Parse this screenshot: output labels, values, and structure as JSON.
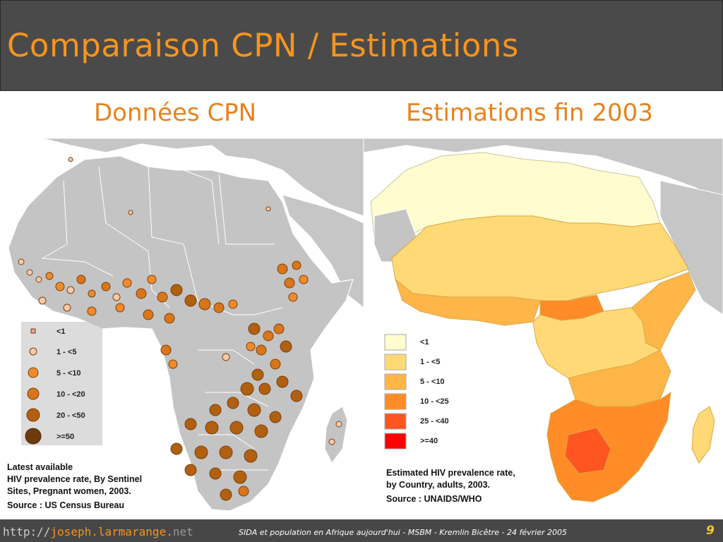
{
  "slide": {
    "title": "Comparaison CPN / Estimations",
    "page_number": "9"
  },
  "left_panel": {
    "heading": "Données CPN",
    "legend": [
      {
        "label": "<1",
        "color": "#e8a0a0"
      },
      {
        "label": "1 - <5",
        "color": "#f9c9a8"
      },
      {
        "label": "5 - <10",
        "color": "#f08a2a"
      },
      {
        "label": "10 - <20",
        "color": "#d9761a"
      },
      {
        "label": "20 - <50",
        "color": "#b0600f"
      },
      {
        "label": ">=50",
        "color": "#6e3a0c"
      }
    ],
    "caption_line1": "Latest available",
    "caption_line2": "HIV prevalence rate, By Sentinel",
    "caption_line3": "Sites, Pregnant women, 2003.",
    "source": "Source : US Census Bureau"
  },
  "right_panel": {
    "heading": "Estimations fin 2003",
    "legend": [
      {
        "label": "<1",
        "color": "#fffccf"
      },
      {
        "label": "1 - <5",
        "color": "#ffd976"
      },
      {
        "label": "5 - <10",
        "color": "#ffb648"
      },
      {
        "label": "10 - <25",
        "color": "#ff8c26"
      },
      {
        "label": "25 - <40",
        "color": "#ff5520"
      },
      {
        "label": ">=40",
        "color": "#ff0000"
      }
    ],
    "caption_line1": "Estimated HIV prevalence rate,",
    "caption_line2": "by Country, adults, 2003.",
    "source": "Source : UNAIDS/WHO"
  },
  "footer": {
    "url_part1": "http://",
    "url_part2": "joseph.larmarange.",
    "url_part3": "net",
    "text": "SIDA et population en Afrique aujourd'hui - MSBM - Kremlin Bicêtre - 24 février 2005"
  },
  "colors": {
    "header_bg": "#4a4a4a",
    "title": "#f7941d",
    "land_other": "#c4c4c4",
    "sea": "#ffffff"
  }
}
